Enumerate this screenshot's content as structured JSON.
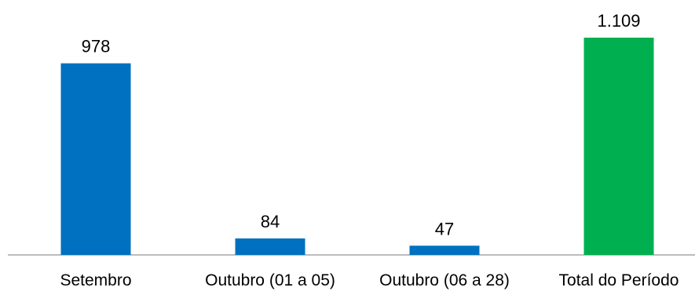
{
  "chart_data": {
    "type": "bar",
    "categories": [
      "Setembro",
      "Outubro (01 a 05)",
      "Outubro (06 a 28)",
      "Total do Período"
    ],
    "values": [
      978,
      84,
      47,
      1109
    ],
    "value_labels": [
      "978",
      "84",
      "47",
      "1.109"
    ],
    "colors": [
      "#0070C0",
      "#0070C0",
      "#0070C0",
      "#00B050"
    ],
    "title": "",
    "xlabel": "",
    "ylabel": "",
    "ylim": [
      0,
      1109
    ],
    "grid": false,
    "legend": "none"
  }
}
